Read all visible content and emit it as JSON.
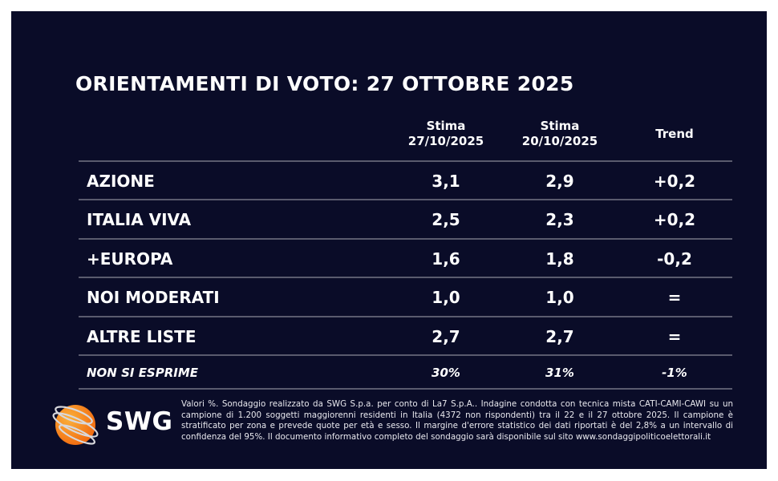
{
  "title": "ORIENTAMENTI DI VOTO: 27 OTTOBRE 2025",
  "columns": [
    {
      "line1": "Stima",
      "line2": "27/10/2025"
    },
    {
      "line1": "Stima",
      "line2": "20/10/2025"
    },
    {
      "line1": "Trend",
      "line2": ""
    }
  ],
  "rows": [
    {
      "party": "AZIONE",
      "current": "3,1",
      "previous": "2,9",
      "trend": "+0,2"
    },
    {
      "party": "ITALIA VIVA",
      "current": "2,5",
      "previous": "2,3",
      "trend": "+0,2"
    },
    {
      "party": "+EUROPA",
      "current": "1,6",
      "previous": "1,8",
      "trend": "-0,2"
    },
    {
      "party": "NOI MODERATI",
      "current": "1,0",
      "previous": "1,0",
      "trend": "="
    },
    {
      "party": "ALTRE LISTE",
      "current": "2,7",
      "previous": "2,7",
      "trend": "="
    },
    {
      "party": "NON SI ESPRIME",
      "current": "30%",
      "previous": "31%",
      "trend": "-1%"
    }
  ],
  "logo": {
    "text": "SWG",
    "accent": "#f7931e"
  },
  "footnote": "Valori %. Sondaggio realizzato da SWG S.p.a. per conto di La7 S.p.A.. Indagine condotta con tecnica mista CATI-CAMI-CAWI su un campione di 1.200 soggetti maggiorenni residenti in Italia (4372 non rispondenti) tra il 22 e il 27 ottobre 2025. Il campione è stratificato per zona e prevede quote per età e sesso. Il margine d'errore statistico dei dati riportati è del 2,8% a un intervallo di confidenza del 95%. Il documento informativo completo del sondaggio sarà disponibile sul sito www.sondaggipoliticoelettorali.it",
  "colors": {
    "background": "#0a0c28",
    "text": "#ffffff",
    "divider": "#5a5b6e"
  }
}
